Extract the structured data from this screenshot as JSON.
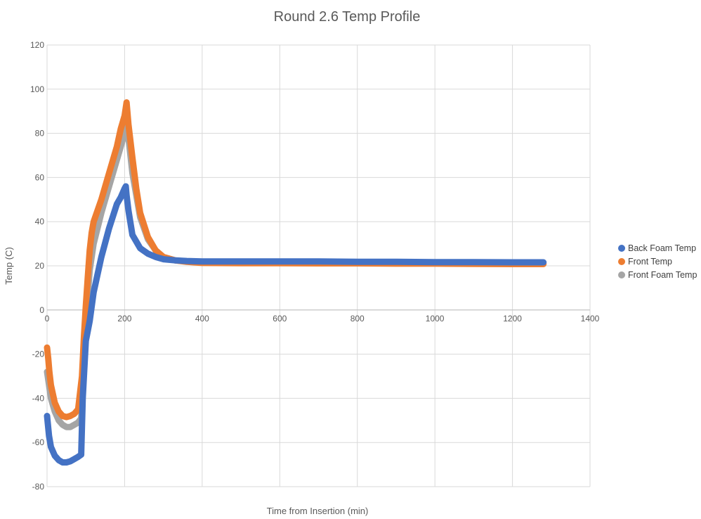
{
  "chart_data": {
    "type": "scatter",
    "title": "Round 2.6 Temp Profile",
    "xlabel": "Time from Insertion (min)",
    "ylabel": "Temp (C)",
    "xlim": [
      0,
      1400
    ],
    "ylim": [
      -80,
      120
    ],
    "xticks": [
      0,
      200,
      400,
      600,
      800,
      1000,
      1200,
      1400
    ],
    "yticks": [
      -80,
      -60,
      -40,
      -20,
      0,
      20,
      40,
      60,
      80,
      100,
      120
    ],
    "grid": true,
    "legend_position": "right",
    "series": [
      {
        "name": "Back Foam Temp",
        "color": "#4472C4",
        "x": [
          0,
          5,
          10,
          20,
          30,
          40,
          50,
          60,
          70,
          80,
          88,
          92,
          100,
          110,
          120,
          140,
          160,
          180,
          190,
          200,
          203,
          205,
          210,
          220,
          240,
          260,
          280,
          300,
          330,
          360,
          400,
          500,
          600,
          700,
          800,
          900,
          1000,
          1100,
          1200,
          1280
        ],
        "values": [
          -48,
          -57,
          -62,
          -66,
          -68,
          -69,
          -69,
          -68.5,
          -67.5,
          -66.5,
          -65.5,
          -40,
          -14,
          -5,
          8,
          24,
          37,
          48,
          51,
          55,
          56,
          52,
          45,
          34,
          28,
          25.5,
          24,
          23,
          22.5,
          22.2,
          22,
          22,
          22,
          22,
          21.8,
          21.8,
          21.7,
          21.7,
          21.6,
          21.6
        ]
      },
      {
        "name": "Front Temp",
        "color": "#ED7D31",
        "x": [
          0,
          3,
          6,
          10,
          20,
          30,
          40,
          50,
          60,
          70,
          80,
          90,
          95,
          100,
          105,
          110,
          115,
          120,
          130,
          140,
          160,
          180,
          190,
          200,
          205,
          210,
          220,
          230,
          240,
          260,
          280,
          300,
          330,
          360,
          400,
          500,
          600,
          700,
          800,
          900,
          1000,
          1100,
          1200,
          1280
        ],
        "values": [
          -17,
          -22,
          -28,
          -34,
          -42,
          -46,
          -48,
          -48.5,
          -48,
          -47,
          -45,
          -30,
          -12,
          2,
          15,
          27,
          35,
          40,
          45,
          50,
          62,
          74,
          82,
          88,
          94,
          84,
          69,
          55,
          44,
          33,
          27,
          24,
          22.5,
          21.8,
          21.3,
          21.2,
          21.2,
          21.1,
          21.1,
          21,
          21,
          20.9,
          20.8,
          20.8
        ]
      },
      {
        "name": "Front Foam Temp",
        "color": "#A5A5A5",
        "x": [
          0,
          5,
          10,
          20,
          30,
          40,
          50,
          60,
          70,
          80,
          88,
          95,
          100,
          110,
          120,
          140,
          160,
          180,
          200,
          205,
          210,
          220,
          240,
          260,
          280,
          300,
          330,
          360,
          400,
          500,
          600,
          700,
          800,
          900,
          1000,
          1100,
          1200,
          1280
        ],
        "values": [
          -28,
          -34,
          -40,
          -46,
          -50,
          -52,
          -53,
          -53,
          -52,
          -51,
          -49,
          -25,
          -5,
          18,
          30,
          44,
          56,
          68,
          80,
          88,
          78,
          62,
          42,
          32,
          27,
          24,
          22.5,
          22,
          21.7,
          21.6,
          21.6,
          21.5,
          21.5,
          21.4,
          21.4,
          21.3,
          21.3,
          21.3
        ]
      }
    ]
  }
}
